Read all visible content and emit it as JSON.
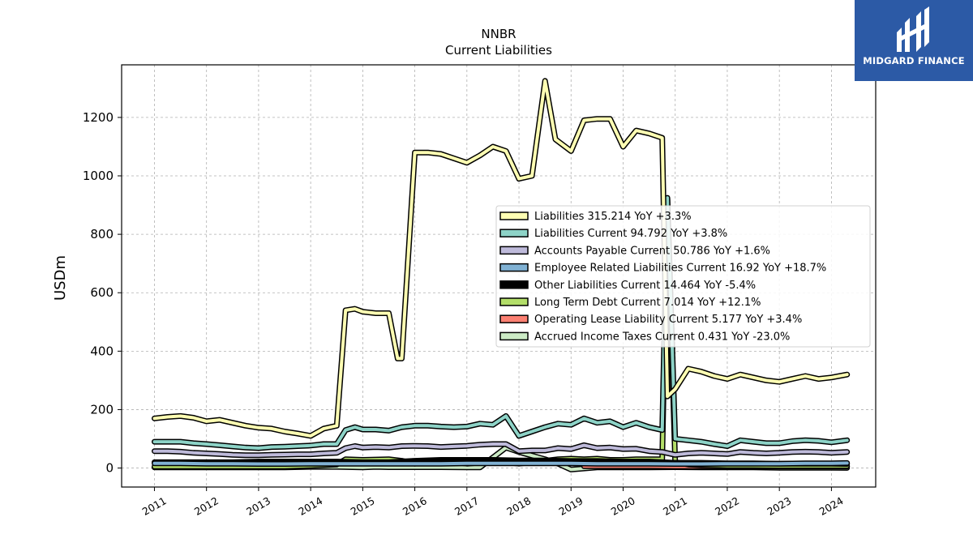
{
  "chart_data": {
    "type": "line",
    "title": "NNBR",
    "subtitle": "Current  Liabilities",
    "ylabel": "USDm",
    "xlabel": "",
    "ylim": [
      -65,
      1380
    ],
    "xlim": [
      2010.37,
      2024.85
    ],
    "yticks": [
      0,
      200,
      400,
      600,
      800,
      1000,
      1200
    ],
    "xticks": [
      "2011",
      "2012",
      "2013",
      "2014",
      "2015",
      "2016",
      "2017",
      "2018",
      "2019",
      "2020",
      "2021",
      "2022",
      "2023",
      "2024"
    ],
    "grid": true,
    "legend_position": "center-right",
    "series": [
      {
        "name": "Liabilities  315.214 YoY +3.3%",
        "color": "#ffffb3",
        "x": [
          2011.0,
          2011.25,
          2011.5,
          2011.75,
          2012.0,
          2012.25,
          2012.5,
          2012.75,
          2013.0,
          2013.25,
          2013.5,
          2013.75,
          2014.0,
          2014.25,
          2014.5,
          2014.67,
          2014.85,
          2015.0,
          2015.25,
          2015.5,
          2015.67,
          2015.75,
          2016.0,
          2016.25,
          2016.5,
          2016.75,
          2017.0,
          2017.25,
          2017.5,
          2017.75,
          2018.0,
          2018.25,
          2018.5,
          2018.7,
          2019.0,
          2019.25,
          2019.5,
          2019.75,
          2020.0,
          2020.25,
          2020.5,
          2020.75,
          2020.85,
          2021.0,
          2021.25,
          2021.5,
          2021.75,
          2022.0,
          2022.25,
          2022.5,
          2022.75,
          2023.0,
          2023.25,
          2023.5,
          2023.75,
          2024.0,
          2024.3
        ],
        "values": [
          170,
          175,
          178,
          172,
          160,
          165,
          155,
          145,
          138,
          135,
          125,
          118,
          110,
          135,
          145,
          540,
          545,
          535,
          530,
          530,
          375,
          375,
          1080,
          1080,
          1075,
          1060,
          1045,
          1070,
          1100,
          1085,
          990,
          1000,
          1325,
          1125,
          1085,
          1190,
          1195,
          1195,
          1100,
          1155,
          1145,
          1130,
          245,
          270,
          340,
          330,
          315,
          305,
          320,
          310,
          300,
          295,
          305,
          315,
          305,
          310,
          320
        ]
      },
      {
        "name": "Liabilities Current  94.792 YoY +3.8%",
        "color": "#8dd3c7",
        "x": [
          2011.0,
          2011.25,
          2011.5,
          2011.75,
          2012.0,
          2012.25,
          2012.5,
          2012.75,
          2013.0,
          2013.25,
          2013.5,
          2013.75,
          2014.0,
          2014.25,
          2014.5,
          2014.67,
          2014.85,
          2015.0,
          2015.25,
          2015.5,
          2015.75,
          2016.0,
          2016.25,
          2016.5,
          2016.75,
          2017.0,
          2017.25,
          2017.5,
          2017.75,
          2018.0,
          2018.25,
          2018.5,
          2018.75,
          2019.0,
          2019.25,
          2019.5,
          2019.75,
          2020.0,
          2020.25,
          2020.5,
          2020.75,
          2020.85,
          2021.0,
          2021.25,
          2021.5,
          2021.75,
          2022.0,
          2022.25,
          2022.5,
          2022.75,
          2023.0,
          2023.25,
          2023.5,
          2023.75,
          2024.0,
          2024.3
        ],
        "values": [
          90,
          90,
          90,
          85,
          82,
          78,
          74,
          70,
          68,
          72,
          73,
          75,
          77,
          82,
          82,
          130,
          140,
          132,
          132,
          128,
          140,
          145,
          145,
          142,
          140,
          142,
          152,
          148,
          178,
          110,
          125,
          140,
          152,
          148,
          170,
          155,
          160,
          140,
          155,
          140,
          130,
          925,
          100,
          95,
          90,
          82,
          75,
          95,
          90,
          85,
          85,
          92,
          95,
          93,
          88,
          95
        ]
      },
      {
        "name": "Accounts Payable Current  50.786 YoY +1.6%",
        "color": "#bebada",
        "x": [
          2011.0,
          2011.25,
          2011.5,
          2011.75,
          2012.0,
          2012.25,
          2012.5,
          2012.75,
          2013.0,
          2013.25,
          2013.5,
          2013.75,
          2014.0,
          2014.25,
          2014.5,
          2014.67,
          2014.85,
          2015.0,
          2015.25,
          2015.5,
          2015.75,
          2016.0,
          2016.25,
          2016.5,
          2016.75,
          2017.0,
          2017.25,
          2017.5,
          2017.75,
          2018.0,
          2018.25,
          2018.5,
          2018.75,
          2019.0,
          2019.25,
          2019.5,
          2019.75,
          2020.0,
          2020.25,
          2020.5,
          2020.75,
          2021.0,
          2021.25,
          2021.5,
          2021.75,
          2022.0,
          2022.25,
          2022.5,
          2022.75,
          2023.0,
          2023.25,
          2023.5,
          2023.75,
          2024.0,
          2024.3
        ],
        "values": [
          58,
          58,
          56,
          52,
          50,
          48,
          45,
          44,
          44,
          45,
          46,
          47,
          47,
          50,
          52,
          68,
          75,
          70,
          72,
          70,
          75,
          76,
          75,
          72,
          74,
          76,
          80,
          82,
          82,
          58,
          60,
          60,
          68,
          65,
          78,
          68,
          70,
          65,
          66,
          58,
          55,
          45,
          50,
          52,
          50,
          48,
          55,
          52,
          50,
          52,
          55,
          56,
          55,
          52,
          55
        ]
      },
      {
        "name": "Employee Related Liabilities Current  16.92 YoY +18.7%",
        "color": "#80b1d3",
        "x": [
          2011.0,
          2011.5,
          2012.0,
          2012.5,
          2013.0,
          2013.5,
          2014.0,
          2014.5,
          2015.0,
          2015.5,
          2016.0,
          2016.5,
          2017.0,
          2017.5,
          2018.0,
          2018.5,
          2019.0,
          2019.5,
          2020.0,
          2020.5,
          2021.0,
          2021.5,
          2022.0,
          2022.5,
          2023.0,
          2023.5,
          2024.0,
          2024.3
        ],
        "values": [
          16,
          16,
          15,
          15,
          14,
          14,
          15,
          15,
          15,
          15,
          15,
          15,
          16,
          16,
          16,
          16,
          16,
          15,
          15,
          15,
          14,
          14,
          15,
          15,
          15,
          16,
          16,
          17
        ]
      },
      {
        "name": "Other Liabilities Current  14.464 YoY -5.4%",
        "color": "#000000",
        "x": [
          2011.0,
          2011.5,
          2012.0,
          2012.5,
          2013.0,
          2013.5,
          2014.0,
          2014.5,
          2015.0,
          2015.5,
          2016.0,
          2016.5,
          2017.0,
          2017.5,
          2018.0,
          2018.5,
          2019.0,
          2019.5,
          2020.0,
          2020.5,
          2021.0,
          2021.5,
          2022.0,
          2022.5,
          2023.0,
          2023.5,
          2024.0,
          2024.3
        ],
        "values": [
          20,
          20,
          20,
          20,
          22,
          22,
          22,
          22,
          20,
          20,
          25,
          28,
          28,
          28,
          26,
          26,
          24,
          24,
          22,
          22,
          18,
          18,
          16,
          16,
          15,
          15,
          15,
          14
        ]
      },
      {
        "name": "Long Term Debt Current  7.014 YoY +12.1%",
        "color": "#b3de69",
        "x": [
          2011.0,
          2011.5,
          2012.0,
          2012.5,
          2013.0,
          2013.5,
          2014.0,
          2014.25,
          2014.5,
          2014.67,
          2015.0,
          2015.5,
          2015.75,
          2016.0,
          2016.25,
          2016.5,
          2016.75,
          2017.0,
          2017.5,
          2017.75,
          2018.0,
          2018.25,
          2018.5,
          2018.75,
          2019.0,
          2019.25,
          2019.5,
          2019.75,
          2020.0,
          2020.25,
          2020.5,
          2020.75,
          2020.85,
          2021.0,
          2021.25,
          2021.5,
          2022.0,
          2022.5,
          2023.0,
          2023.5,
          2024.0,
          2024.3
        ],
        "values": [
          5,
          5,
          5,
          5,
          5,
          5,
          8,
          10,
          12,
          30,
          28,
          30,
          25,
          15,
          20,
          25,
          20,
          15,
          22,
          20,
          15,
          20,
          25,
          30,
          32,
          30,
          32,
          28,
          28,
          30,
          30,
          30,
          920,
          20,
          12,
          10,
          8,
          8,
          7,
          7,
          7,
          7
        ]
      },
      {
        "name": "Operating Lease Liability Current  5.177 YoY +3.4%",
        "color": "#fb8072",
        "x": [
          2019.25,
          2019.5,
          2020.0,
          2020.5,
          2021.0,
          2021.5,
          2022.0,
          2022.5,
          2023.0,
          2023.5,
          2024.0,
          2024.3
        ],
        "values": [
          6,
          6,
          6,
          6,
          5,
          5,
          5,
          5,
          5,
          5,
          5,
          5
        ]
      },
      {
        "name": "Accrued Income Taxes Current  0.431 YoY -23.0%",
        "color": "#ccebc5",
        "x": [
          2011.0,
          2011.5,
          2012.0,
          2012.5,
          2013.0,
          2013.5,
          2014.0,
          2014.5,
          2015.0,
          2015.25,
          2015.5,
          2016.0,
          2016.5,
          2017.0,
          2017.25,
          2017.75,
          2018.0,
          2018.5,
          2018.75,
          2019.0,
          2019.5,
          2020.0,
          2020.5,
          2021.0,
          2021.5,
          2022.0,
          2022.5,
          2023.0,
          2023.5,
          2024.0,
          2024.3
        ],
        "values": [
          2,
          2,
          2,
          2,
          2,
          2,
          4,
          4,
          2,
          4,
          3,
          3,
          3,
          2,
          2,
          70,
          55,
          30,
          15,
          -5,
          2,
          2,
          2,
          3,
          2,
          2,
          2,
          1,
          1,
          1,
          0.4
        ]
      }
    ]
  },
  "logo": {
    "text": "MIDGARD FINANCE",
    "color": "#2c5aa6"
  }
}
